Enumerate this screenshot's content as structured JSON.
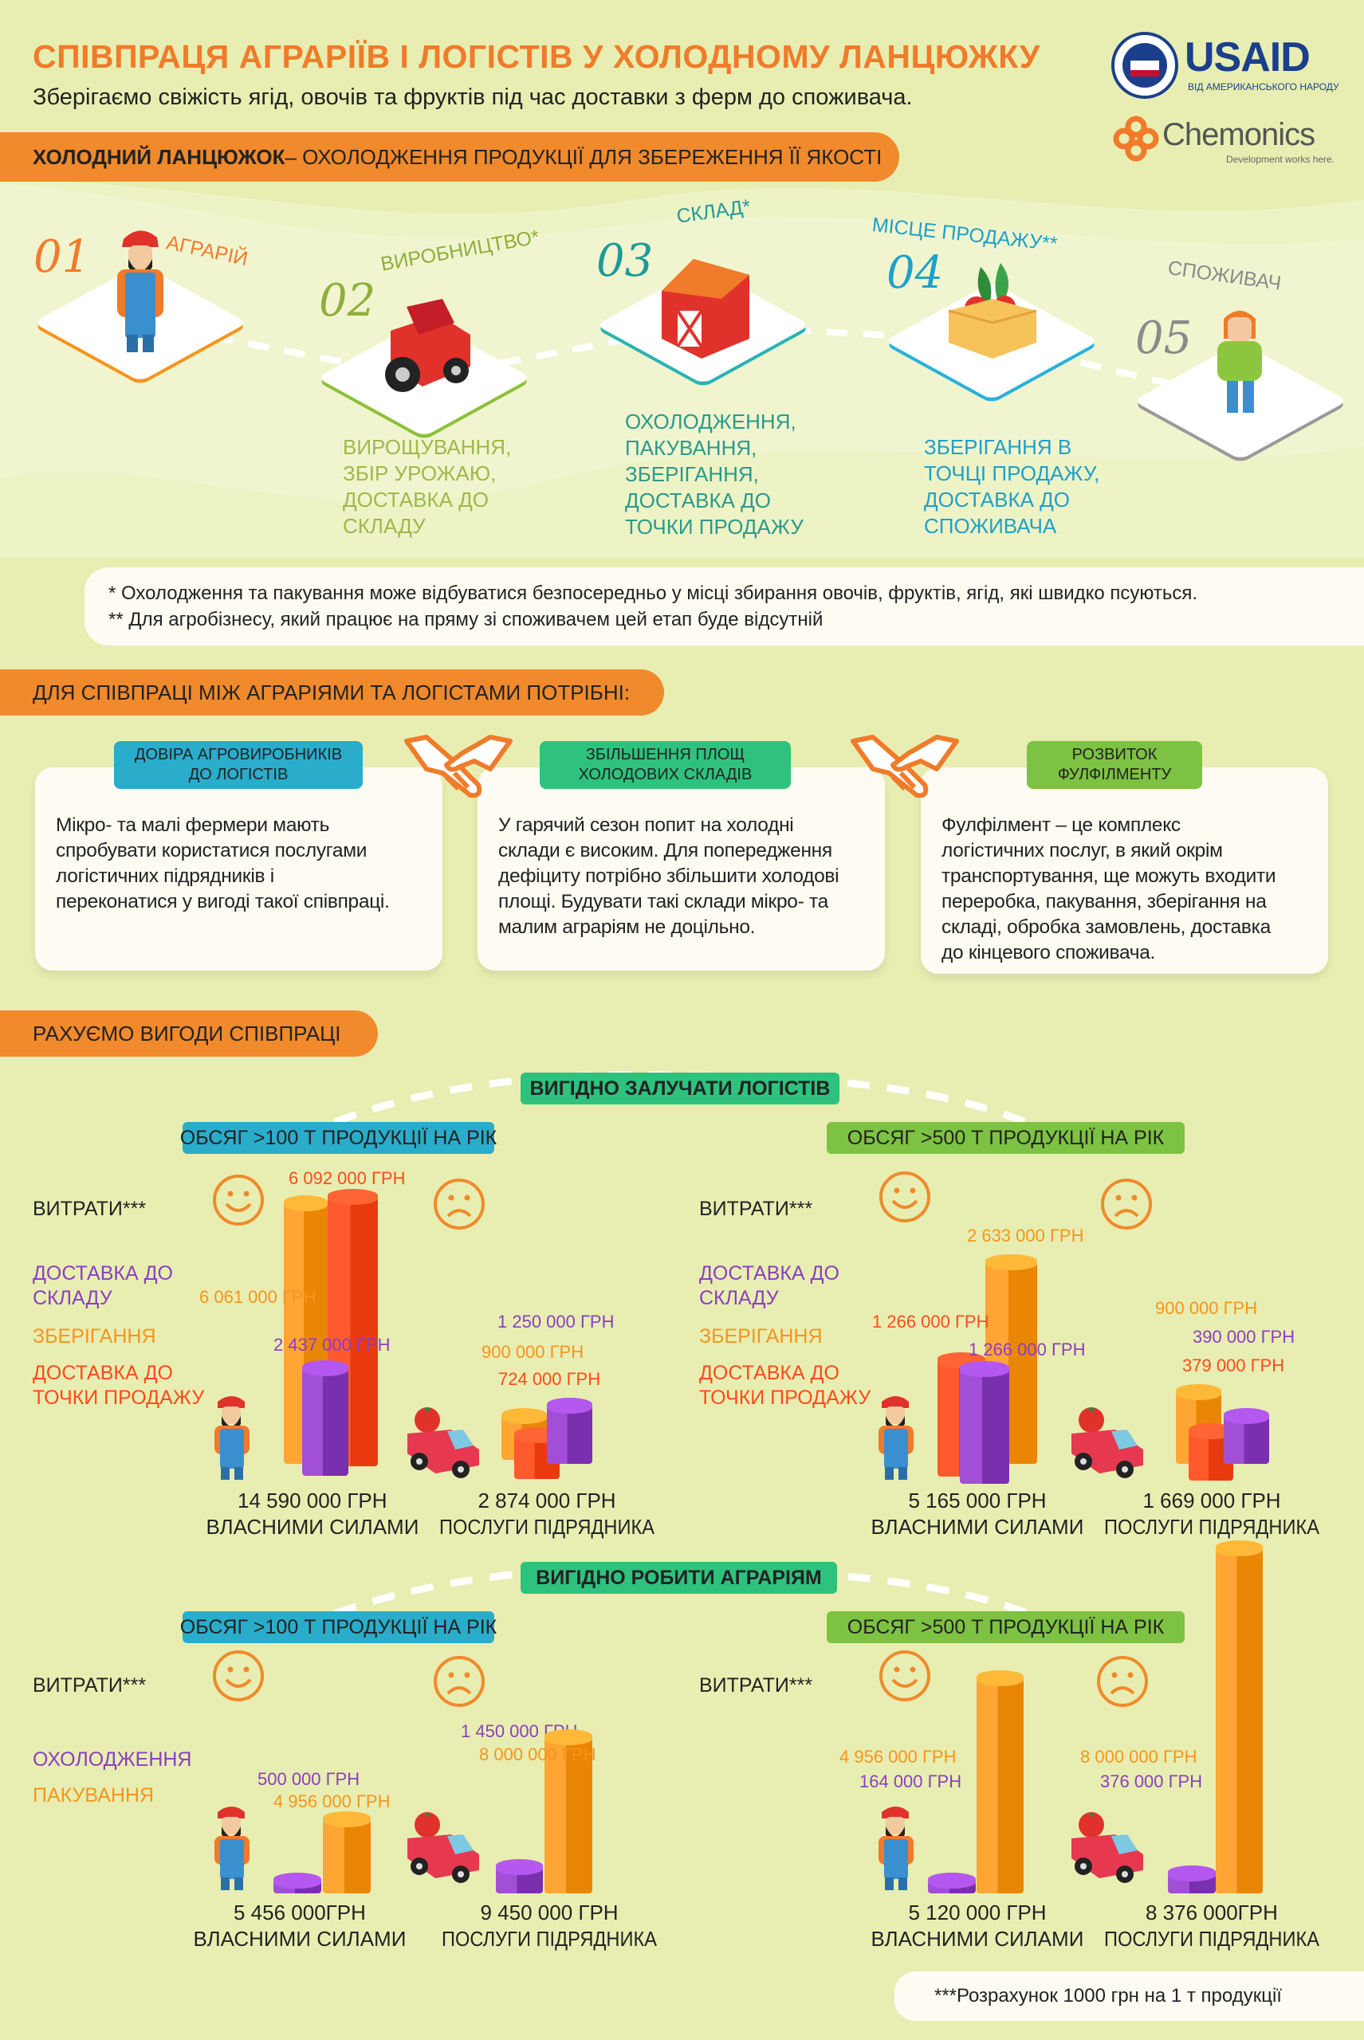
{
  "header": {
    "title": "СПІВПРАЦЯ АГРАРІЇВ І ЛОГІСТІВ У ХОЛОДНОМУ ЛАНЦЮЖКУ",
    "subtitle": "Зберігаємо свіжість ягід, овочів та фруктів під час доставки з ферм до споживача.",
    "logos": {
      "usaid": "USAID",
      "usaid_tagline": "ВІД АМЕРИКАНСЬКОГО НАРОДУ",
      "chemonics": "Chemonics",
      "chemonics_tagline": "Development works here."
    }
  },
  "cold_chain": {
    "banner_bold": "ХОЛОДНИЙ ЛАНЦЮЖОК",
    "banner_rest": " – ОХОЛОДЖЕННЯ ПРОДУКЦІЇ ДЛЯ ЗБЕРЕЖЕННЯ ЇЇ ЯКОСТІ",
    "steps": [
      {
        "num": "01",
        "label": "АГРАРІЙ",
        "color": "#f07b2a",
        "icon": "farmer-icon"
      },
      {
        "num": "02",
        "label": "ВИРОБНИЦТВО*",
        "color": "#8fae3a",
        "icon": "tractor-icon",
        "desc": "ВИРОЩУВАННЯ,\nЗБІР УРОЖАЮ,\nДОСТАВКА ДО\nСКЛАДУ"
      },
      {
        "num": "03",
        "label": "СКЛАД*",
        "color": "#1f9a9a",
        "icon": "barn-icon",
        "desc": "ОХОЛОДЖЕННЯ,\nПАКУВАННЯ,\nЗБЕРІГАННЯ,\nДОСТАВКА ДО\nТОЧКИ ПРОДАЖУ"
      },
      {
        "num": "04",
        "label": "МІСЦЕ ПРОДАЖУ**",
        "color": "#1fa0c8",
        "icon": "produce-crate-icon",
        "desc": "ЗБЕРІГАННЯ В\nТОЧЦІ ПРОДАЖУ,\nДОСТАВКА ДО\nСПОЖИВАЧА"
      },
      {
        "num": "05",
        "label": "СПОЖИВАЧ",
        "color": "#8a8a8a",
        "icon": "consumer-icon"
      }
    ],
    "notes": [
      "* Охолодження та пакування може відбуватися безпосередньо у місці збирання овочів, фруктів, ягід, які швидко псуються.",
      "** Для агробізнесу, який працює на пряму зі споживачем цей етап буде відсутній"
    ]
  },
  "needs": {
    "banner": "ДЛЯ СПІВПРАЦІ МІЖ АГРАРІЯМИ ТА ЛОГІСТАМИ ПОТРІБНІ:",
    "cards": [
      {
        "tag": "ДОВІРА АГРОВИРОБНИКІВ\nДО ЛОГІСТІВ",
        "color": "#2aaccb",
        "text": "Мікро- та малі фермери мають\nспробувати користатися послугами\nлогістичних підрядників і\nпереконатися у вигоді такої співпраці."
      },
      {
        "tag": "ЗБІЛЬШЕННЯ ПЛОЩ\nХОЛОДОВИХ СКЛАДІВ",
        "color": "#2ec27e",
        "text": "У гарячий сезон попит на холодні\nсклади є високим. Для попередження\nдефіциту потрібно збільшити холодові\nплощі. Будувати такі склади мікро- та\nмалим аграріям не доцільно."
      },
      {
        "tag": "РОЗВИТОК\nФУЛФІЛМЕНТУ",
        "color": "#7dc242",
        "text": "Фулфілмент – це комплекс\nлогістичних послуг, в який окрім\nтранспортування, ще можуть входити\nпереробка, пакування, зберігання на\nскладі, обробка замовлень, доставка\nдо кінцевого споживача."
      }
    ]
  },
  "benefits": {
    "banner": "РАХУЄМО ВИГОДИ СПІВПРАЦІ",
    "group_logistics": "ВИГІДНО ЗАЛУЧАТИ ЛОГІСТІВ",
    "group_farmers": "ВИГІДНО РОБИТИ АГРАРІЯМ",
    "costs_label": "ВИТРАТИ***",
    "own_label": "ВЛАСНИМИ СИЛАМИ",
    "contractor_label": "ПОСЛУГИ ПІДРЯДНИКА",
    "footnote": "***Розрахунок 1000 грн на 1 т продукції",
    "colors": {
      "delivery_warehouse": "#8b3fc0",
      "storage": "#f7941d",
      "delivery_sale": "#ff4a1c",
      "cooling": "#8b3fc0",
      "packing": "#f7941d"
    }
  },
  "chart_data": [
    {
      "type": "bar",
      "group": "ВИГІДНО ЗАЛУЧАТИ ЛОГІСТІВ",
      "title": "ОБСЯГ >100 Т ПРОДУКЦІЇ НА РІК",
      "pill_color": "#2aaccb",
      "legend": [
        {
          "name": "ДОСТАВКА ДО\nСКЛАДУ",
          "color": "#8b3fc0"
        },
        {
          "name": "ЗБЕРІГАННЯ",
          "color": "#f7941d"
        },
        {
          "name": "ДОСТАВКА ДО\nТОЧКИ ПРОДАЖУ",
          "color": "#ff4a1c"
        }
      ],
      "own": {
        "total": "14 590 000 ГРН",
        "bars": [
          {
            "series": "ЗБЕРІГАННЯ",
            "value": 6061000,
            "label": "6 061 000 ГРН"
          },
          {
            "series": "ДОСТАВКА ДО ТОЧКИ ПРОДАЖУ",
            "value": 6092000,
            "label": "6 092 000 ГРН"
          },
          {
            "series": "ДОСТАВКА ДО СКЛАДУ",
            "value": 2437000,
            "label": "2 437 000 ГРН"
          }
        ]
      },
      "contractor": {
        "total": "2 874 000 ГРН",
        "bars": [
          {
            "series": "ЗБЕРІГАННЯ",
            "value": 900000,
            "label": "900 000 ГРН"
          },
          {
            "series": "ДОСТАВКА ДО ТОЧКИ ПРОДАЖУ",
            "value": 724000,
            "label": "724 000 ГРН"
          },
          {
            "series": "ДОСТАВКА ДО СКЛАДУ",
            "value": 1250000,
            "label": "1 250 000 ГРН"
          }
        ]
      }
    },
    {
      "type": "bar",
      "group": "ВИГІДНО ЗАЛУЧАТИ ЛОГІСТІВ",
      "title": "ОБСЯГ >500 Т ПРОДУКЦІЇ НА РІК",
      "pill_color": "#7dc242",
      "legend": [
        {
          "name": "ДОСТАВКА ДО\nСКЛАДУ",
          "color": "#8b3fc0"
        },
        {
          "name": "ЗБЕРІГАННЯ",
          "color": "#f7941d"
        },
        {
          "name": "ДОСТАВКА ДО\nТОЧКИ ПРОДАЖУ",
          "color": "#ff4a1c"
        }
      ],
      "own": {
        "total": "5 165 000 ГРН",
        "bars": [
          {
            "series": "ЗБЕРІГАННЯ",
            "value": 2633000,
            "label": "2 633 000 ГРН"
          },
          {
            "series": "ДОСТАВКА ДО ТОЧКИ ПРОДАЖУ",
            "value": 1266000,
            "label": "1 266 000 ГРН"
          },
          {
            "series": "ДОСТАВКА ДО СКЛАДУ",
            "value": 1266000,
            "label": "1 266 000 ГРН"
          }
        ]
      },
      "contractor": {
        "total": "1 669 000 ГРН",
        "bars": [
          {
            "series": "ЗБЕРІГАННЯ",
            "value": 900000,
            "label": "900 000 ГРН"
          },
          {
            "series": "ДОСТАВКА ДО ТОЧКИ ПРОДАЖУ",
            "value": 379000,
            "label": "379 000 ГРН"
          },
          {
            "series": "ДОСТАВКА ДО СКЛАДУ",
            "value": 390000,
            "label": "390 000 ГРН"
          }
        ]
      }
    },
    {
      "type": "bar",
      "group": "ВИГІДНО РОБИТИ АГРАРІЯМ",
      "title": "ОБСЯГ >100 Т ПРОДУКЦІЇ НА РІК",
      "pill_color": "#2aaccb",
      "legend": [
        {
          "name": "ОХОЛОДЖЕННЯ",
          "color": "#8b3fc0"
        },
        {
          "name": "ПАКУВАННЯ",
          "color": "#f7941d"
        }
      ],
      "own": {
        "total": "5 456 000ГРН",
        "bars": [
          {
            "series": "ОХОЛОДЖЕННЯ",
            "value": 500000,
            "label": "500 000 ГРН"
          },
          {
            "series": "ПАКУВАННЯ",
            "value": 4956000,
            "label": "4 956 000 ГРН"
          }
        ]
      },
      "contractor": {
        "total": "9 450 000 ГРН",
        "bars": [
          {
            "series": "ОХОЛОДЖЕННЯ",
            "value": 1450000,
            "label": "1 450 000 ГРН"
          },
          {
            "series": "ПАКУВАННЯ",
            "value": 8000000,
            "label": "8 000 000 ГРН"
          }
        ]
      }
    },
    {
      "type": "bar",
      "group": "ВИГІДНО РОБИТИ АГРАРІЯМ",
      "title": "ОБСЯГ >500 Т ПРОДУКЦІЇ НА РІК",
      "pill_color": "#7dc242",
      "legend": [],
      "own": {
        "total": "5 120 000 ГРН",
        "bars": [
          {
            "series": "ОХОЛОДЖЕННЯ",
            "value": 164000,
            "label": "164 000 ГРН"
          },
          {
            "series": "ПАКУВАННЯ",
            "value": 4956000,
            "label": "4 956 000 ГРН"
          }
        ]
      },
      "contractor": {
        "total": "8 376 000ГРН",
        "bars": [
          {
            "series": "ОХОЛОДЖЕННЯ",
            "value": 376000,
            "label": "376 000 ГРН"
          },
          {
            "series": "ПАКУВАННЯ",
            "value": 8000000,
            "label": "8 000 000 ГРН"
          }
        ]
      }
    }
  ]
}
